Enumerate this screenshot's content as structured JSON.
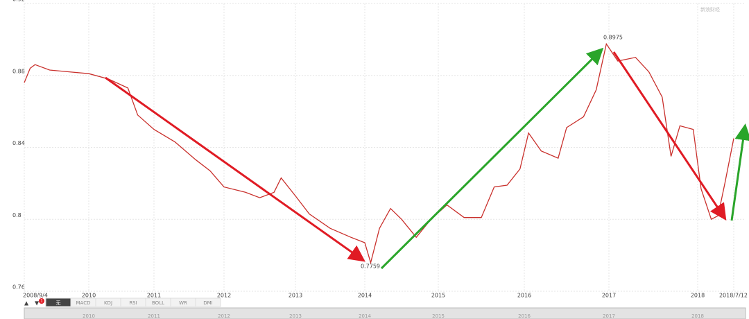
{
  "chart_data": {
    "type": "line",
    "x": [
      2008.68,
      2008.8,
      2008.9,
      2009.2,
      2009.6,
      2010.0,
      2010.3,
      2010.6,
      2010.75,
      2011.0,
      2011.3,
      2011.6,
      2011.8,
      2012.0,
      2012.3,
      2012.5,
      2012.7,
      2012.8,
      2013.0,
      2013.2,
      2013.5,
      2013.8,
      2014.0,
      2014.08,
      2014.2,
      2014.35,
      2014.5,
      2014.7,
      2014.9,
      2015.1,
      2015.3,
      2015.5,
      2015.65,
      2015.8,
      2015.95,
      2016.05,
      2016.2,
      2016.4,
      2016.5,
      2016.7,
      2016.85,
      2016.97,
      2017.1,
      2017.3,
      2017.45,
      2017.6,
      2017.7,
      2017.8,
      2017.95,
      2018.05,
      2018.2,
      2018.3,
      2018.4,
      2018.53
    ],
    "values": [
      0.876,
      0.884,
      0.886,
      0.883,
      0.882,
      0.881,
      0.878,
      0.873,
      0.858,
      0.85,
      0.843,
      0.833,
      0.827,
      0.818,
      0.815,
      0.812,
      0.815,
      0.823,
      0.813,
      0.803,
      0.795,
      0.79,
      0.787,
      0.7759,
      0.795,
      0.806,
      0.8,
      0.79,
      0.8,
      0.808,
      0.801,
      0.801,
      0.818,
      0.819,
      0.828,
      0.848,
      0.838,
      0.834,
      0.851,
      0.857,
      0.872,
      0.8975,
      0.888,
      0.89,
      0.882,
      0.868,
      0.835,
      0.852,
      0.85,
      0.817,
      0.8,
      0.802,
      0.82,
      0.845
    ],
    "color": "#c9302c",
    "xlim": [
      2008.68,
      2018.53
    ],
    "xticks": [
      {
        "value": 2008.68,
        "label": "2008/9/4"
      },
      2010,
      2011,
      2012,
      2013,
      2014,
      2015,
      2016,
      2017,
      2018,
      {
        "value": 2018.53,
        "label": "2018/7/12"
      }
    ],
    "ylim": [
      0.76,
      0.92
    ],
    "yticks": [
      0.76,
      0.8,
      0.84,
      0.88,
      0.92
    ],
    "grid": true,
    "annotations": [
      "0.8975",
      "0.7759"
    ],
    "watermark": "新浪财经"
  },
  "toolbar": {
    "up": "▲",
    "down": "▼",
    "badge": "1",
    "tabs": [
      "无",
      "MACD",
      "KDJ",
      "RSI",
      "BOLL",
      "WR",
      "DMI"
    ]
  }
}
